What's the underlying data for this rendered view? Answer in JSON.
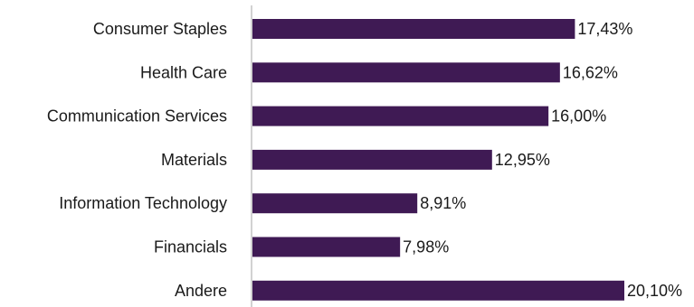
{
  "chart_data": {
    "type": "bar",
    "orientation": "horizontal",
    "categories": [
      "Consumer Staples",
      "Health Care",
      "Communication Services",
      "Materials",
      "Information Technology",
      "Financials",
      "Andere"
    ],
    "values": [
      17.43,
      16.62,
      16.0,
      12.95,
      8.91,
      7.98,
      20.1
    ],
    "value_labels": [
      "17,43%",
      "16,62%",
      "16,00%",
      "12,95%",
      "8,91%",
      "7,98%",
      "20,10%"
    ],
    "xlim": [
      0,
      20.1
    ],
    "grid": false,
    "legend": "none",
    "bar_color": "#3f1a54",
    "axis_color": "#a6a6a6"
  }
}
